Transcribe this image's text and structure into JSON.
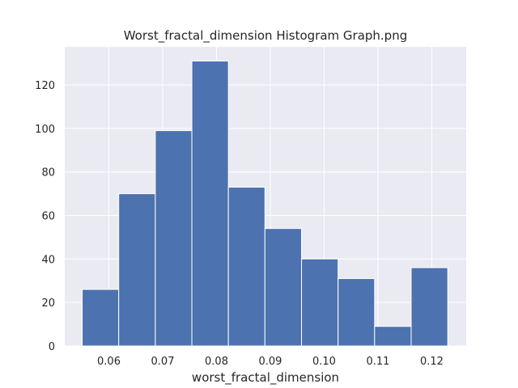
{
  "chart_data": {
    "type": "bar",
    "title": "Worst_fractal_dimension Histogram Graph.png",
    "xlabel": "worst_fractal_dimension",
    "ylabel": "",
    "xlim": [
      0.0518,
      0.1264
    ],
    "ylim": [
      0,
      137.5
    ],
    "xticks": [
      0.06,
      0.07,
      0.08,
      0.09,
      0.1,
      0.11,
      0.12
    ],
    "xtick_labels": [
      "0.06",
      "0.07",
      "0.08",
      "0.09",
      "0.10",
      "0.11",
      "0.12"
    ],
    "yticks": [
      0,
      20,
      40,
      60,
      80,
      100,
      120
    ],
    "ytick_labels": [
      "0",
      "20",
      "40",
      "60",
      "80",
      "100",
      "120"
    ],
    "bin_edges": [
      0.05504,
      0.06183,
      0.06863,
      0.07542,
      0.08221,
      0.089,
      0.0958,
      0.10259,
      0.10938,
      0.11617,
      0.12297
    ],
    "values": [
      26,
      70,
      99,
      131,
      73,
      54,
      40,
      31,
      9,
      36
    ],
    "grid": true,
    "legend": "none",
    "colors": {
      "background": "#eaeaf2",
      "bar": "#4c72b0",
      "grid": "#ffffff"
    }
  }
}
